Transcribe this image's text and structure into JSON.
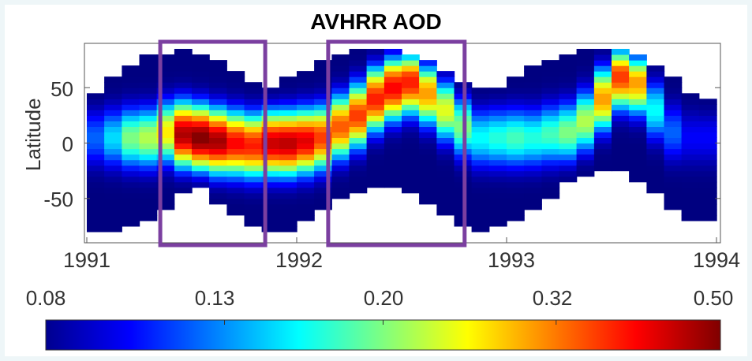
{
  "chart_data": {
    "type": "heatmap",
    "title": "AVHRR AOD",
    "xlabel": "",
    "ylabel": "Latitude",
    "xlim": [
      1991,
      1994
    ],
    "ylim": [
      -90,
      90
    ],
    "xticks": [
      "1991",
      "1992",
      "1993",
      "1994"
    ],
    "yticks": [
      "50",
      "0",
      "-50"
    ],
    "colorbar": {
      "scale": "log",
      "ticks": [
        "0.08",
        "0.13",
        "0.20",
        "0.32",
        "0.50"
      ],
      "range": [
        0.08,
        0.5
      ],
      "colormap": "jet"
    },
    "highlight_boxes": [
      {
        "from": 1991.35,
        "to": 1991.85,
        "color": "#7b3fa0"
      },
      {
        "from": 1992.15,
        "to": 1992.8,
        "color": "#7b3fa0"
      }
    ],
    "profiles": [
      {
        "time": 1991.0,
        "south": -80,
        "north": 46,
        "peak_lat": 5,
        "peak_aod": 0.12
      },
      {
        "time": 1991.083,
        "south": -80,
        "north": 58,
        "peak_lat": 5,
        "peak_aod": 0.15
      },
      {
        "time": 1991.167,
        "south": -74,
        "north": 68,
        "peak_lat": 5,
        "peak_aod": 0.2
      },
      {
        "time": 1991.25,
        "south": -68,
        "north": 78,
        "peak_lat": 5,
        "peak_aod": 0.22
      },
      {
        "time": 1991.333,
        "south": -58,
        "north": 82,
        "peak_lat": 10,
        "peak_aod": 0.26
      },
      {
        "time": 1991.417,
        "south": -44,
        "north": 85,
        "peak_lat": 8,
        "peak_aod": 0.46
      },
      {
        "time": 1991.5,
        "south": -40,
        "north": 82,
        "peak_lat": 5,
        "peak_aod": 0.5
      },
      {
        "time": 1991.583,
        "south": -54,
        "north": 75,
        "peak_lat": 2,
        "peak_aod": 0.47
      },
      {
        "time": 1991.667,
        "south": -66,
        "north": 66,
        "peak_lat": 0,
        "peak_aod": 0.4
      },
      {
        "time": 1991.75,
        "south": -76,
        "north": 55,
        "peak_lat": -2,
        "peak_aod": 0.38
      },
      {
        "time": 1991.833,
        "south": -80,
        "north": 50,
        "peak_lat": 0,
        "peak_aod": 0.44
      },
      {
        "time": 1991.917,
        "south": -78,
        "north": 58,
        "peak_lat": 0,
        "peak_aod": 0.45
      },
      {
        "time": 1992.0,
        "south": -72,
        "north": 66,
        "peak_lat": 2,
        "peak_aod": 0.42
      },
      {
        "time": 1992.083,
        "south": -62,
        "north": 74,
        "peak_lat": 5,
        "peak_aod": 0.36
      },
      {
        "time": 1992.167,
        "south": -50,
        "north": 80,
        "peak_lat": 15,
        "peak_aod": 0.34
      },
      {
        "time": 1992.25,
        "south": -44,
        "north": 84,
        "peak_lat": 25,
        "peak_aod": 0.36
      },
      {
        "time": 1992.333,
        "south": -40,
        "north": 84,
        "peak_lat": 40,
        "peak_aod": 0.38
      },
      {
        "time": 1992.417,
        "south": -40,
        "north": 84,
        "peak_lat": 50,
        "peak_aod": 0.4
      },
      {
        "time": 1992.5,
        "south": -46,
        "north": 82,
        "peak_lat": 55,
        "peak_aod": 0.38
      },
      {
        "time": 1992.583,
        "south": -56,
        "north": 74,
        "peak_lat": 45,
        "peak_aod": 0.3
      },
      {
        "time": 1992.667,
        "south": -66,
        "north": 66,
        "peak_lat": 30,
        "peak_aod": 0.24
      },
      {
        "time": 1992.75,
        "south": -74,
        "north": 54,
        "peak_lat": 15,
        "peak_aod": 0.2
      },
      {
        "time": 1992.833,
        "south": -78,
        "north": 48,
        "peak_lat": 5,
        "peak_aod": 0.16
      },
      {
        "time": 1992.917,
        "south": -76,
        "north": 52,
        "peak_lat": 5,
        "peak_aod": 0.17
      },
      {
        "time": 1993.0,
        "south": -72,
        "north": 60,
        "peak_lat": 5,
        "peak_aod": 0.18
      },
      {
        "time": 1993.083,
        "south": -60,
        "north": 68,
        "peak_lat": 5,
        "peak_aod": 0.17
      },
      {
        "time": 1993.167,
        "south": -48,
        "north": 76,
        "peak_lat": 8,
        "peak_aod": 0.18
      },
      {
        "time": 1993.25,
        "south": -36,
        "north": 82,
        "peak_lat": 10,
        "peak_aod": 0.2
      },
      {
        "time": 1993.333,
        "south": -28,
        "north": 85,
        "peak_lat": 20,
        "peak_aod": 0.22
      },
      {
        "time": 1993.417,
        "south": -24,
        "north": 85,
        "peak_lat": 40,
        "peak_aod": 0.3
      },
      {
        "time": 1993.5,
        "south": -26,
        "north": 85,
        "peak_lat": 60,
        "peak_aod": 0.36
      },
      {
        "time": 1993.583,
        "south": -34,
        "north": 78,
        "peak_lat": 55,
        "peak_aod": 0.3
      },
      {
        "time": 1993.667,
        "south": -46,
        "north": 68,
        "peak_lat": 30,
        "peak_aod": 0.16
      },
      {
        "time": 1993.75,
        "south": -58,
        "north": 58,
        "peak_lat": 10,
        "peak_aod": 0.12
      },
      {
        "time": 1993.833,
        "south": -68,
        "north": 45,
        "peak_lat": 5,
        "peak_aod": 0.1
      },
      {
        "time": 1993.917,
        "south": -70,
        "north": 38,
        "peak_lat": 5,
        "peak_aod": 0.1
      }
    ]
  }
}
